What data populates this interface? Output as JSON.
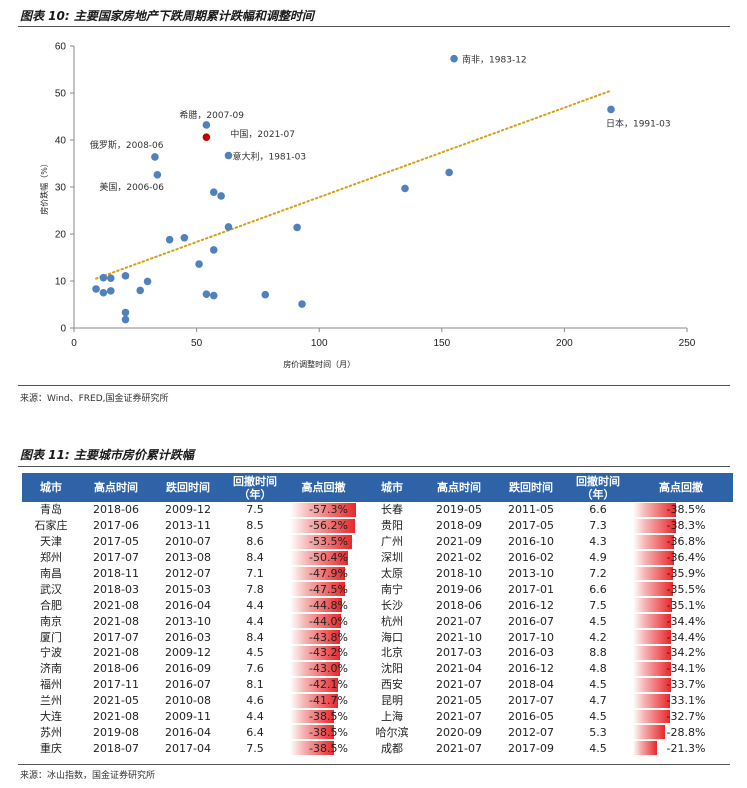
{
  "fig10": {
    "title": "图表 10: 主要国家房地产下跌周期累计跌幅和调整时间",
    "source": "来源：Wind、FRED,国金证券研究所"
  },
  "fig11": {
    "title": "图表 11: 主要城市房价累计跌幅",
    "source": "来源：冰山指数，国金证券研究所",
    "headers": [
      "城市",
      "高点时间",
      "跌回时间",
      "回撤时间（年）",
      "高点回撤",
      "城市",
      "高点时间",
      "跌回时间",
      "回撤时间（年）",
      "高点回撤"
    ],
    "rows_left": [
      {
        "city": "青岛",
        "high": "2018-06",
        "back": "2009-12",
        "years": "7.5",
        "dd": "-57.3%",
        "v": 57.3
      },
      {
        "city": "石家庄",
        "high": "2017-06",
        "back": "2013-11",
        "years": "8.5",
        "dd": "-56.2%",
        "v": 56.2
      },
      {
        "city": "天津",
        "high": "2017-05",
        "back": "2010-07",
        "years": "8.6",
        "dd": "-53.5%",
        "v": 53.5
      },
      {
        "city": "郑州",
        "high": "2017-07",
        "back": "2013-08",
        "years": "8.4",
        "dd": "-50.4%",
        "v": 50.4
      },
      {
        "city": "南昌",
        "high": "2018-11",
        "back": "2012-07",
        "years": "7.1",
        "dd": "-47.9%",
        "v": 47.9
      },
      {
        "city": "武汉",
        "high": "2018-03",
        "back": "2015-03",
        "years": "7.8",
        "dd": "-47.5%",
        "v": 47.5
      },
      {
        "city": "合肥",
        "high": "2021-08",
        "back": "2016-04",
        "years": "4.4",
        "dd": "-44.8%",
        "v": 44.8
      },
      {
        "city": "南京",
        "high": "2021-08",
        "back": "2013-10",
        "years": "4.4",
        "dd": "-44.0%",
        "v": 44.0
      },
      {
        "city": "厦门",
        "high": "2017-07",
        "back": "2016-03",
        "years": "8.4",
        "dd": "-43.8%",
        "v": 43.8
      },
      {
        "city": "宁波",
        "high": "2021-08",
        "back": "2009-12",
        "years": "4.5",
        "dd": "-43.2%",
        "v": 43.2
      },
      {
        "city": "济南",
        "high": "2018-06",
        "back": "2016-09",
        "years": "7.6",
        "dd": "-43.0%",
        "v": 43.0
      },
      {
        "city": "福州",
        "high": "2017-11",
        "back": "2016-07",
        "years": "8.1",
        "dd": "-42.1%",
        "v": 42.1
      },
      {
        "city": "兰州",
        "high": "2021-05",
        "back": "2010-08",
        "years": "4.6",
        "dd": "-41.7%",
        "v": 41.7
      },
      {
        "city": "大连",
        "high": "2021-08",
        "back": "2009-11",
        "years": "4.4",
        "dd": "-38.5%",
        "v": 38.5
      },
      {
        "city": "苏州",
        "high": "2019-08",
        "back": "2016-04",
        "years": "6.4",
        "dd": "-38.5%",
        "v": 38.5
      },
      {
        "city": "重庆",
        "high": "2018-07",
        "back": "2017-04",
        "years": "7.5",
        "dd": "-38.5%",
        "v": 38.5
      }
    ],
    "rows_right": [
      {
        "city": "长春",
        "high": "2019-05",
        "back": "2011-05",
        "years": "6.6",
        "dd": "-38.5%",
        "v": 38.5
      },
      {
        "city": "贵阳",
        "high": "2018-09",
        "back": "2017-05",
        "years": "7.3",
        "dd": "-38.3%",
        "v": 38.3
      },
      {
        "city": "广州",
        "high": "2021-09",
        "back": "2016-10",
        "years": "4.3",
        "dd": "-36.8%",
        "v": 36.8
      },
      {
        "city": "深圳",
        "high": "2021-02",
        "back": "2016-02",
        "years": "4.9",
        "dd": "-36.4%",
        "v": 36.4
      },
      {
        "city": "太原",
        "high": "2018-10",
        "back": "2013-10",
        "years": "7.2",
        "dd": "-35.9%",
        "v": 35.9
      },
      {
        "city": "南宁",
        "high": "2019-06",
        "back": "2017-01",
        "years": "6.6",
        "dd": "-35.5%",
        "v": 35.5
      },
      {
        "city": "长沙",
        "high": "2018-06",
        "back": "2016-12",
        "years": "7.5",
        "dd": "-35.1%",
        "v": 35.1
      },
      {
        "city": "杭州",
        "high": "2021-07",
        "back": "2016-07",
        "years": "4.5",
        "dd": "-34.4%",
        "v": 34.4
      },
      {
        "city": "海口",
        "high": "2021-10",
        "back": "2017-10",
        "years": "4.2",
        "dd": "-34.4%",
        "v": 34.4
      },
      {
        "city": "北京",
        "high": "2017-03",
        "back": "2016-03",
        "years": "8.8",
        "dd": "-34.2%",
        "v": 34.2
      },
      {
        "city": "沈阳",
        "high": "2021-04",
        "back": "2016-12",
        "years": "4.8",
        "dd": "-34.1%",
        "v": 34.1
      },
      {
        "city": "西安",
        "high": "2021-07",
        "back": "2018-04",
        "years": "4.5",
        "dd": "-33.7%",
        "v": 33.7
      },
      {
        "city": "昆明",
        "high": "2021-05",
        "back": "2017-07",
        "years": "4.7",
        "dd": "-33.1%",
        "v": 33.1
      },
      {
        "city": "上海",
        "high": "2021-07",
        "back": "2016-05",
        "years": "4.5",
        "dd": "-32.7%",
        "v": 32.7
      },
      {
        "city": "哈尔滨",
        "high": "2020-09",
        "back": "2012-07",
        "years": "5.3",
        "dd": "-28.8%",
        "v": 28.8
      },
      {
        "city": "成都",
        "high": "2021-07",
        "back": "2017-09",
        "years": "4.5",
        "dd": "-21.3%",
        "v": 21.3
      }
    ]
  },
  "colors": {
    "point": "#4f81bd",
    "highlight": "#c00000",
    "trend": "#d4a017",
    "header": "#2e63a8",
    "bar": "#e8272a"
  },
  "chart_data": {
    "type": "scatter",
    "title": "图表 10: 主要国家房地产下跌周期累计跌幅和调整时间",
    "xlabel": "房价调整时间（月）",
    "ylabel": "房价跌幅（%）",
    "xlim": [
      0,
      250
    ],
    "ylim": [
      0,
      60
    ],
    "xticks": [
      0,
      50,
      100,
      150,
      200,
      250
    ],
    "yticks": [
      0,
      10,
      20,
      30,
      40,
      50,
      60
    ],
    "grid": false,
    "trendline": {
      "style": "dotted",
      "from": [
        9,
        10.5
      ],
      "to": [
        219,
        50.5
      ]
    },
    "points": [
      {
        "x": 155,
        "y": 57.3,
        "label": "南非，1983-12"
      },
      {
        "x": 219,
        "y": 46.5,
        "label": "日本，1991-03"
      },
      {
        "x": 54,
        "y": 43.2,
        "label": "希腊，2007-09"
      },
      {
        "x": 54,
        "y": 40.6,
        "label": "中国，2021-07",
        "highlight": true
      },
      {
        "x": 63,
        "y": 36.7,
        "label": "意大利，1981-03"
      },
      {
        "x": 33,
        "y": 36.4,
        "label": "俄罗斯，2008-06"
      },
      {
        "x": 34,
        "y": 32.6,
        "label": "美国，2006-06"
      },
      {
        "x": 57,
        "y": 28.9
      },
      {
        "x": 60,
        "y": 28.1
      },
      {
        "x": 135,
        "y": 29.7
      },
      {
        "x": 153,
        "y": 33.1
      },
      {
        "x": 39,
        "y": 18.8
      },
      {
        "x": 45,
        "y": 19.2
      },
      {
        "x": 63,
        "y": 21.5
      },
      {
        "x": 91,
        "y": 21.4
      },
      {
        "x": 57,
        "y": 16.6
      },
      {
        "x": 51,
        "y": 13.6
      },
      {
        "x": 9,
        "y": 8.3
      },
      {
        "x": 12,
        "y": 10.7
      },
      {
        "x": 15,
        "y": 10.6
      },
      {
        "x": 21,
        "y": 11.1
      },
      {
        "x": 30,
        "y": 9.9
      },
      {
        "x": 12,
        "y": 7.5
      },
      {
        "x": 15,
        "y": 7.9
      },
      {
        "x": 27,
        "y": 8.0
      },
      {
        "x": 54,
        "y": 7.2
      },
      {
        "x": 57,
        "y": 6.9
      },
      {
        "x": 78,
        "y": 7.1
      },
      {
        "x": 93,
        "y": 5.1
      },
      {
        "x": 21,
        "y": 3.3
      },
      {
        "x": 21,
        "y": 1.8
      }
    ]
  }
}
